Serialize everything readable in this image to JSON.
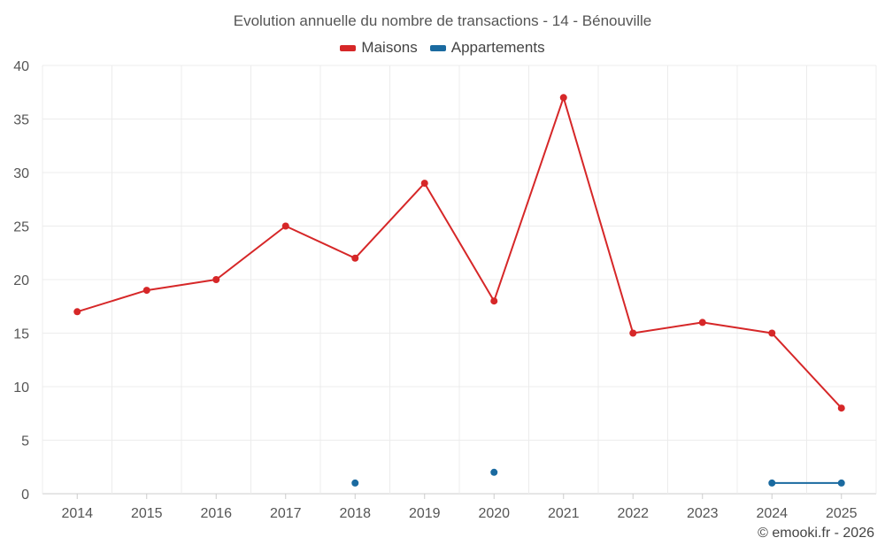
{
  "chart_data": {
    "type": "line",
    "title": "Evolution annuelle du nombre de transactions - 14 - Bénouville",
    "xlabel": "",
    "ylabel": "",
    "categories": [
      "2014",
      "2015",
      "2016",
      "2017",
      "2018",
      "2019",
      "2020",
      "2021",
      "2022",
      "2023",
      "2024",
      "2025"
    ],
    "ylim": [
      0,
      40
    ],
    "yticks": [
      0,
      5,
      10,
      15,
      20,
      25,
      30,
      35,
      40
    ],
    "grid": true,
    "legend_position": "top-center",
    "series": [
      {
        "name": "Maisons",
        "color": "#d62728",
        "values": [
          17,
          19,
          20,
          25,
          22,
          29,
          18,
          37,
          15,
          16,
          15,
          8
        ]
      },
      {
        "name": "Appartements",
        "color": "#1a6aa0",
        "values": [
          null,
          null,
          null,
          null,
          1,
          null,
          2,
          null,
          null,
          null,
          1,
          1
        ]
      }
    ]
  },
  "credit": "© emooki.fr - 2026"
}
